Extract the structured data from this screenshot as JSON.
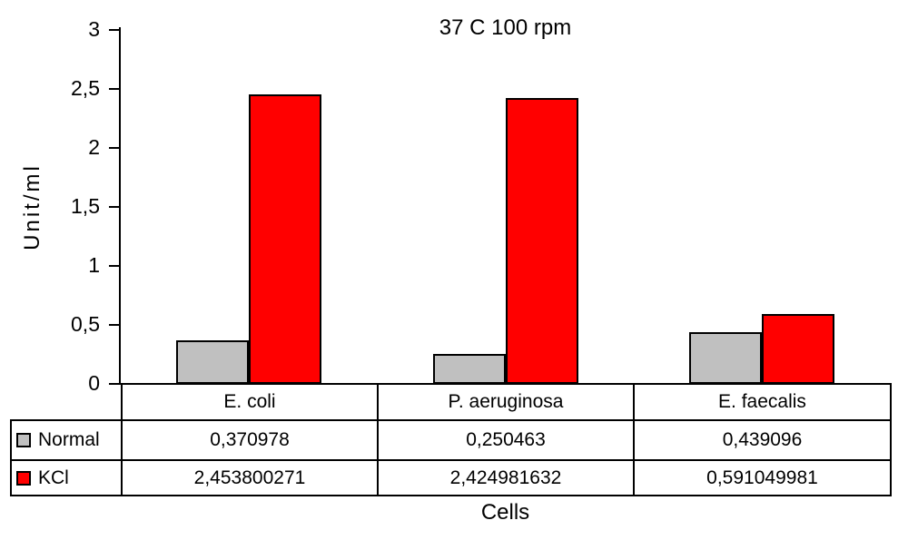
{
  "chart_data": {
    "type": "bar",
    "title": "37 C 100 rpm",
    "xlabel": "Cells",
    "ylabel": "Unit/ml",
    "ylim": [
      0,
      3
    ],
    "ytick_values": [
      0,
      0.5,
      1,
      1.5,
      2,
      2.5,
      3
    ],
    "ytick_labels": [
      "0",
      "0,5",
      "1",
      "1,5",
      "2",
      "2,5",
      "3"
    ],
    "categories": [
      "E. coli",
      "P. aeruginosa",
      "E. faecalis"
    ],
    "series": [
      {
        "name": "Normal",
        "color": "#c0c0c0",
        "values": [
          0.370978,
          0.250463,
          0.439096
        ],
        "display": [
          "0,370978",
          "0,250463",
          "0,439096"
        ]
      },
      {
        "name": "KCl",
        "color": "#ff0000",
        "values": [
          2.453800271,
          2.424981632,
          0.591049981
        ],
        "display": [
          "2,453800271",
          "2,424981632",
          "0,591049981"
        ]
      }
    ],
    "legend_position": "table-left",
    "grid": false,
    "axis_color": "#000000",
    "bar_border_color": "#000000"
  }
}
